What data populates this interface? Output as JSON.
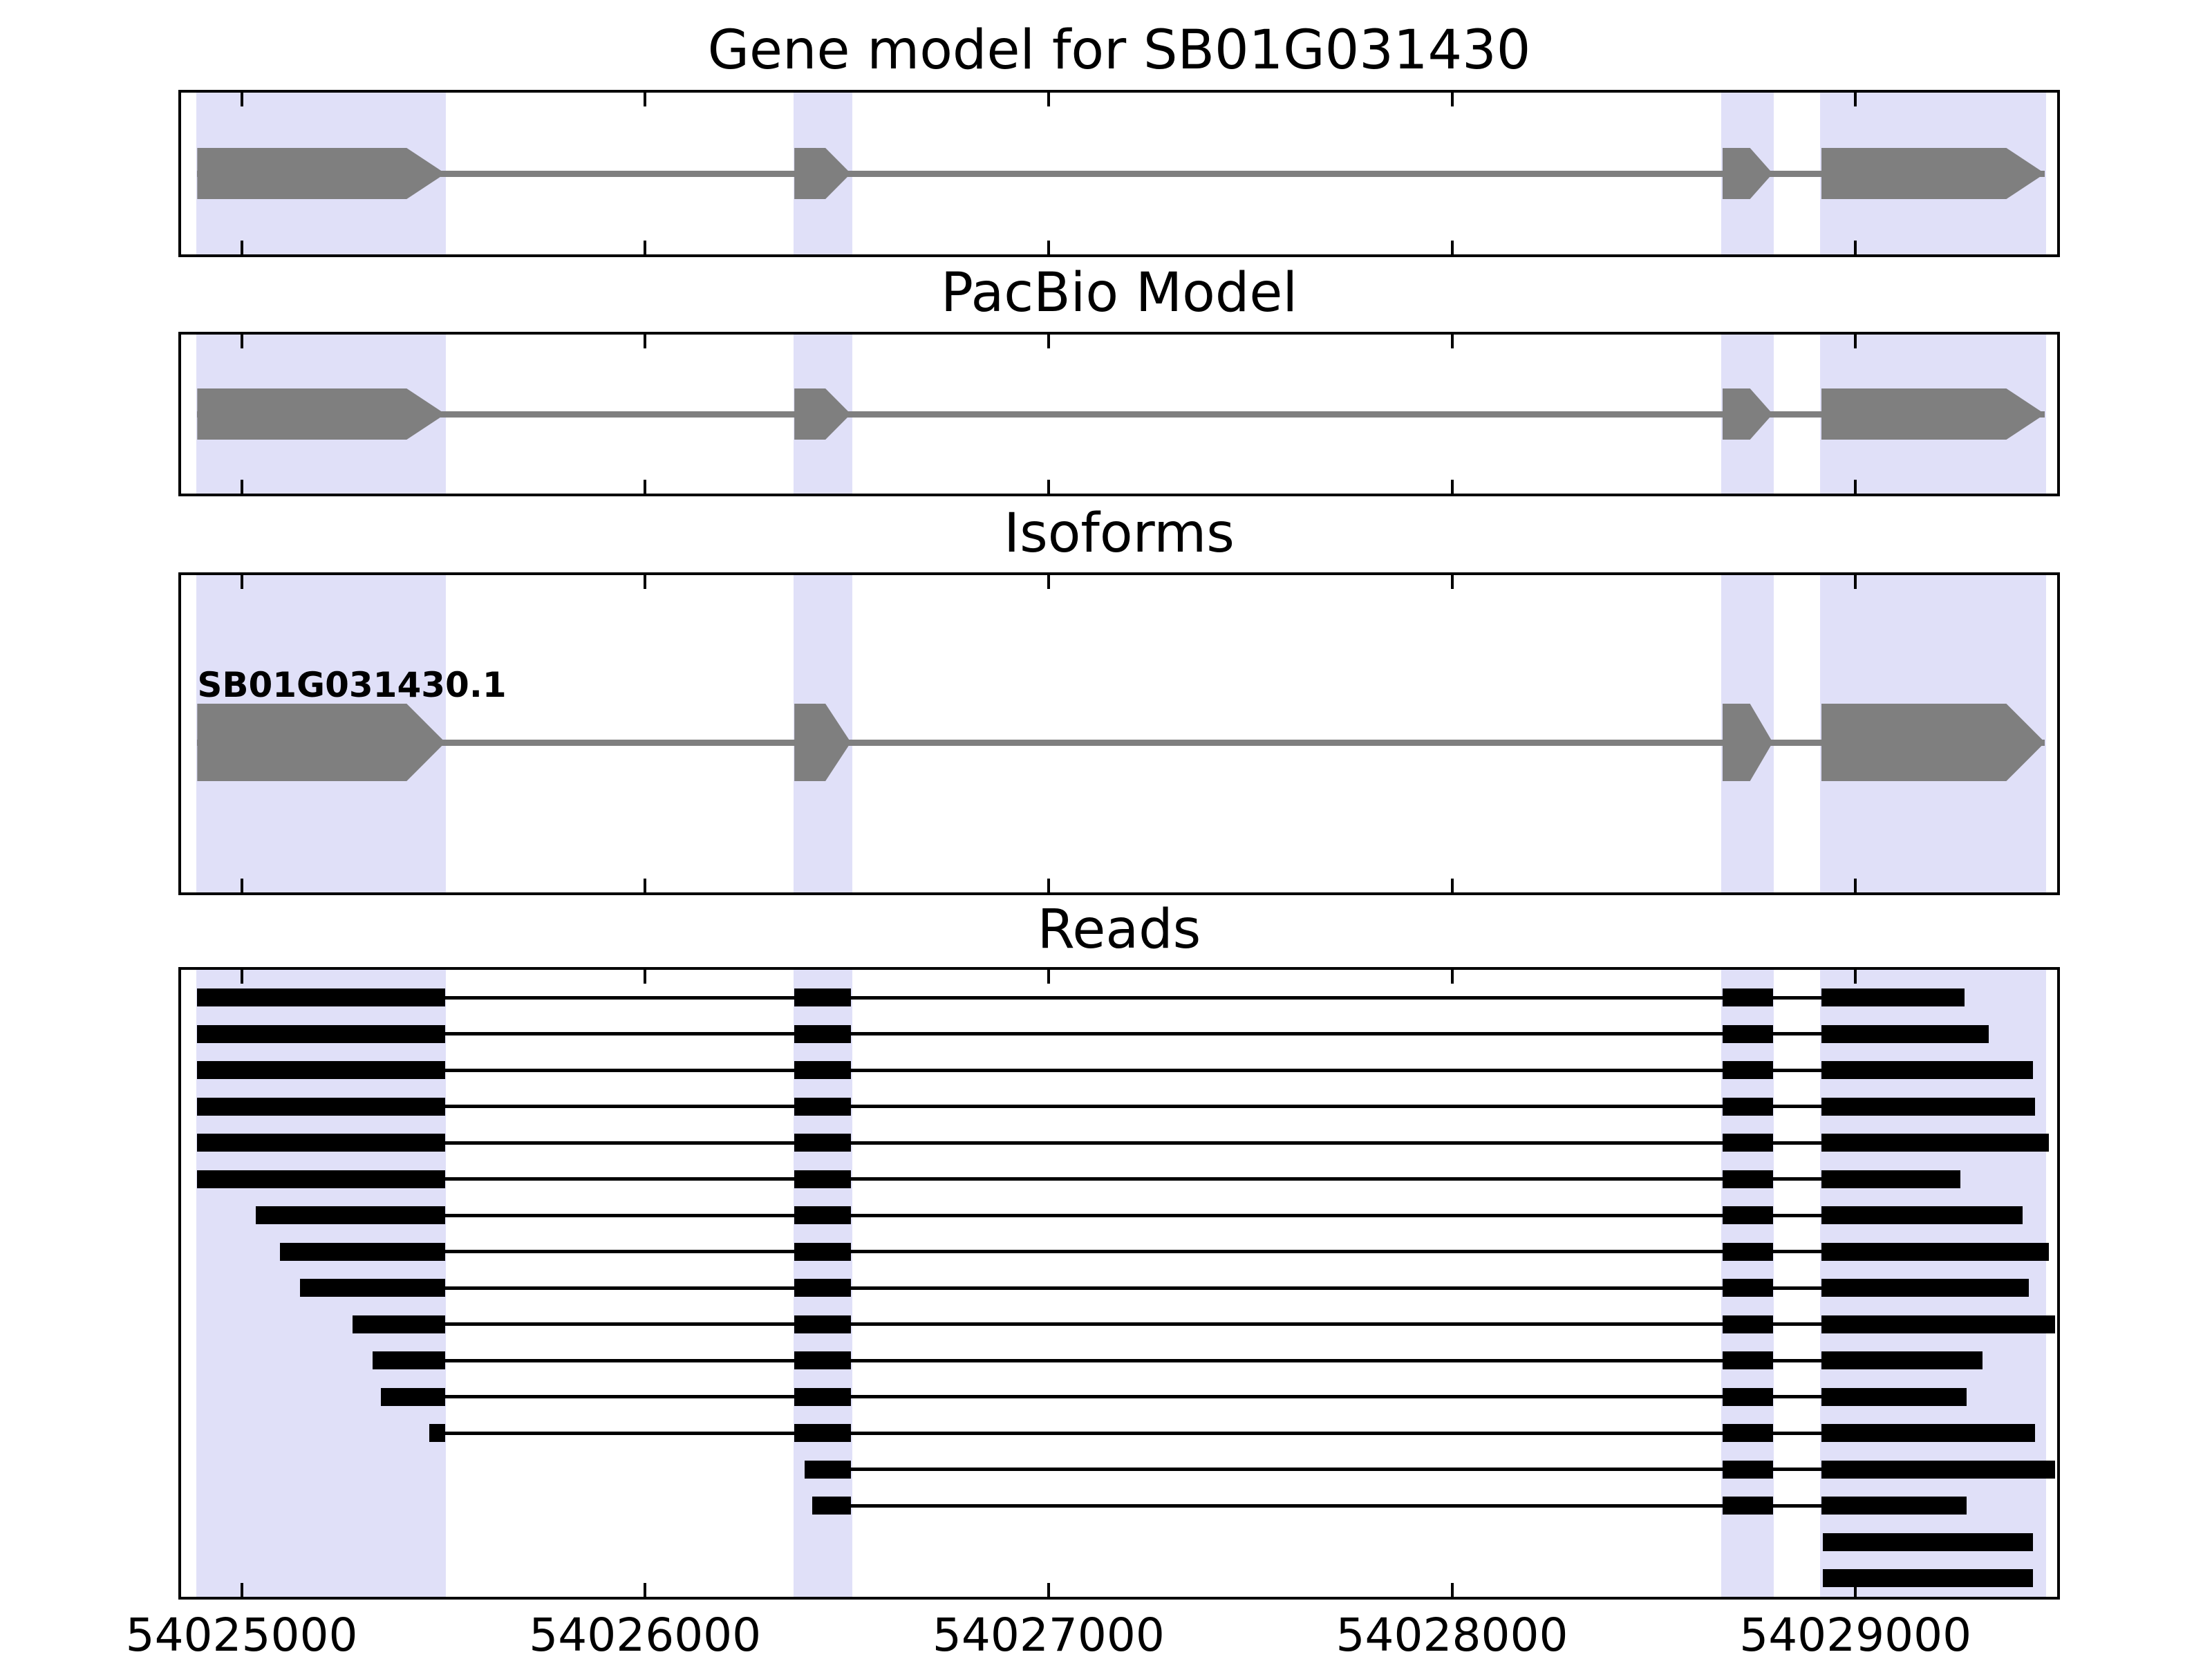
{
  "figure": {
    "title": "Gene model for SB01G031430"
  },
  "panels": [
    {
      "title": "Gene model for SB01G031430"
    },
    {
      "title": "PacBio Model"
    },
    {
      "title": "Isoforms"
    },
    {
      "title": "Reads"
    }
  ],
  "chart_data": {
    "type": "gene-model-tracks",
    "title": "Gene model for SB01G031430",
    "x_range": [
      54024850,
      54029500
    ],
    "x_ticks": [
      54025000,
      54026000,
      54027000,
      54028000,
      54029000
    ],
    "x_tick_labels": [
      "54025000",
      "54026000",
      "54027000",
      "54028000",
      "54029000"
    ],
    "highlight_regions": [
      [
        54024888,
        54025507
      ],
      [
        54026368,
        54026513
      ],
      [
        54028668,
        54028797
      ],
      [
        54028913,
        54029472
      ]
    ],
    "strand": "+",
    "gene_model": {
      "name": "SB01G031430",
      "exons": [
        [
          54024890,
          54025505
        ],
        [
          54026370,
          54026510
        ],
        [
          54028670,
          54028795
        ],
        [
          54028915,
          54029470
        ]
      ]
    },
    "pacbio_model": {
      "exons": [
        [
          54024890,
          54025505
        ],
        [
          54026370,
          54026510
        ],
        [
          54028670,
          54028795
        ],
        [
          54028915,
          54029470
        ]
      ]
    },
    "isoforms": [
      {
        "name": "SB01G031430.1",
        "exons": [
          [
            54024890,
            54025505
          ],
          [
            54026370,
            54026510
          ],
          [
            54028670,
            54028795
          ],
          [
            54028915,
            54029470
          ]
        ]
      }
    ],
    "reads": [
      {
        "blocks": [
          [
            54024890,
            54025505
          ],
          [
            54026370,
            54026510
          ],
          [
            54028670,
            54028795
          ],
          [
            54028915,
            54029270
          ]
        ]
      },
      {
        "blocks": [
          [
            54024890,
            54025505
          ],
          [
            54026370,
            54026510
          ],
          [
            54028670,
            54028795
          ],
          [
            54028915,
            54029330
          ]
        ]
      },
      {
        "blocks": [
          [
            54024890,
            54025505
          ],
          [
            54026370,
            54026510
          ],
          [
            54028670,
            54028795
          ],
          [
            54028915,
            54029440
          ]
        ]
      },
      {
        "blocks": [
          [
            54024890,
            54025505
          ],
          [
            54026370,
            54026510
          ],
          [
            54028670,
            54028795
          ],
          [
            54028915,
            54029445
          ]
        ]
      },
      {
        "blocks": [
          [
            54024890,
            54025505
          ],
          [
            54026370,
            54026510
          ],
          [
            54028670,
            54028795
          ],
          [
            54028915,
            54029480
          ]
        ]
      },
      {
        "blocks": [
          [
            54024890,
            54025505
          ],
          [
            54026370,
            54026510
          ],
          [
            54028670,
            54028795
          ],
          [
            54028915,
            54029260
          ]
        ]
      },
      {
        "blocks": [
          [
            54025035,
            54025505
          ],
          [
            54026370,
            54026510
          ],
          [
            54028670,
            54028795
          ],
          [
            54028915,
            54029415
          ]
        ]
      },
      {
        "blocks": [
          [
            54025095,
            54025505
          ],
          [
            54026370,
            54026510
          ],
          [
            54028670,
            54028795
          ],
          [
            54028915,
            54029480
          ]
        ]
      },
      {
        "blocks": [
          [
            54025145,
            54025505
          ],
          [
            54026370,
            54026510
          ],
          [
            54028670,
            54028795
          ],
          [
            54028915,
            54029430
          ]
        ]
      },
      {
        "blocks": [
          [
            54025275,
            54025505
          ],
          [
            54026370,
            54026510
          ],
          [
            54028670,
            54028795
          ],
          [
            54028915,
            54029495
          ]
        ]
      },
      {
        "blocks": [
          [
            54025325,
            54025505
          ],
          [
            54026370,
            54026510
          ],
          [
            54028670,
            54028795
          ],
          [
            54028915,
            54029315
          ]
        ]
      },
      {
        "blocks": [
          [
            54025345,
            54025505
          ],
          [
            54026370,
            54026510
          ],
          [
            54028670,
            54028795
          ],
          [
            54028915,
            54029275
          ]
        ]
      },
      {
        "blocks": [
          [
            54025465,
            54025505
          ],
          [
            54026370,
            54026510
          ],
          [
            54028670,
            54028795
          ],
          [
            54028915,
            54029445
          ]
        ]
      },
      {
        "blocks": [
          [
            54026395,
            54026510
          ],
          [
            54028670,
            54028795
          ],
          [
            54028915,
            54029495
          ]
        ]
      },
      {
        "blocks": [
          [
            54026415,
            54026510
          ],
          [
            54028670,
            54028795
          ],
          [
            54028915,
            54029275
          ]
        ]
      },
      {
        "blocks": [
          [
            54028920,
            54029440
          ]
        ]
      },
      {
        "blocks": [
          [
            54028920,
            54029440
          ]
        ]
      }
    ],
    "colors": {
      "highlight": "#e0e0f8",
      "model_fill": "#7f7f7f",
      "read_fill": "#000000",
      "frame": "#000000",
      "background": "#ffffff"
    }
  }
}
